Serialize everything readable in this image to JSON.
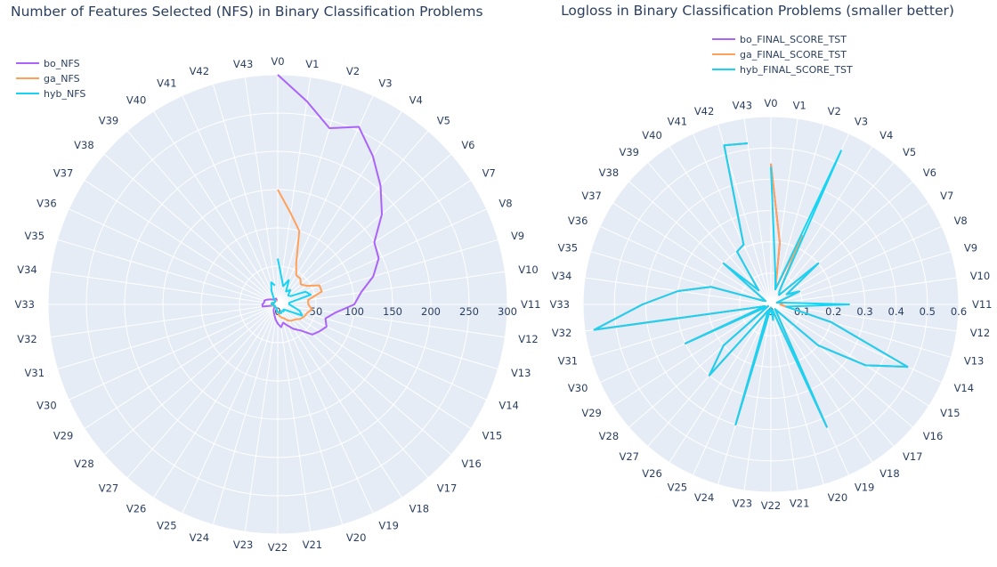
{
  "chart_data": [
    {
      "type": "polar-line",
      "title": "Number of Features Selected (NFS) in Binary Classification Problems",
      "theta_labels": [
        "V0",
        "V1",
        "V2",
        "V3",
        "V4",
        "V5",
        "V6",
        "V7",
        "V8",
        "V9",
        "V10",
        "V11",
        "V12",
        "V13",
        "V14",
        "V15",
        "V16",
        "V17",
        "V18",
        "V19",
        "V20",
        "V21",
        "V22",
        "V23",
        "V24",
        "V25",
        "V26",
        "V27",
        "V28",
        "V29",
        "V30",
        "V31",
        "V32",
        "V33",
        "V34",
        "V35",
        "V36",
        "V37",
        "V38",
        "V39",
        "V40",
        "V41",
        "V42",
        "V43"
      ],
      "radial_range": [
        0,
        300
      ],
      "radial_ticks": [
        0,
        50,
        100,
        150,
        200,
        250,
        300
      ],
      "legend_position": "top-left",
      "series": [
        {
          "name": "bo_NFS",
          "color": "#ab63fa",
          "values": [
            300,
            268,
            240,
            255,
            230,
            205,
            180,
            150,
            145,
            130,
            110,
            100,
            76,
            65,
            70,
            65,
            60,
            45,
            38,
            30,
            25,
            30,
            25,
            20,
            15,
            12,
            10,
            8,
            6,
            5,
            5,
            5,
            20,
            20,
            18,
            18,
            15,
            12,
            10,
            8,
            8,
            8,
            8,
            5
          ]
        },
        {
          "name": "ga_NFS",
          "color": "#FFA15A",
          "values": [
            150,
            120,
            100,
            58,
            45,
            45,
            40,
            45,
            60,
            60,
            40,
            40,
            45,
            40,
            38,
            35,
            30,
            28,
            25,
            20,
            18,
            15,
            10,
            8,
            6,
            5,
            5,
            4,
            4,
            5,
            5,
            5,
            8,
            8,
            8,
            5,
            5,
            5,
            5,
            5,
            5,
            5,
            5,
            5
          ]
        },
        {
          "name": "hyb_NFS",
          "color": "#19d3f3",
          "values": [
            60,
            35,
            25,
            35,
            20,
            25,
            18,
            20,
            40,
            45,
            15,
            15,
            20,
            30,
            35,
            15,
            10,
            12,
            10,
            12,
            12,
            10,
            10,
            8,
            5,
            5,
            5,
            5,
            4,
            4,
            5,
            5,
            5,
            8,
            8,
            8,
            5,
            5,
            5,
            5,
            10,
            20,
            30,
            25
          ]
        }
      ]
    },
    {
      "type": "polar-line",
      "title": "Logloss in Binary Classification Problems (smaller better)",
      "theta_labels": [
        "V0",
        "V1",
        "V2",
        "V3",
        "V4",
        "V5",
        "V6",
        "V7",
        "V8",
        "V9",
        "V10",
        "V11",
        "V12",
        "V13",
        "V14",
        "V15",
        "V16",
        "V17",
        "V18",
        "V19",
        "V20",
        "V21",
        "V22",
        "V23",
        "V24",
        "V25",
        "V26",
        "V27",
        "V28",
        "V29",
        "V30",
        "V31",
        "V32",
        "V33",
        "V34",
        "V35",
        "V36",
        "V37",
        "V38",
        "V39",
        "V40",
        "V41",
        "V42",
        "V43"
      ],
      "radial_range": [
        0,
        0.6
      ],
      "radial_ticks": [
        0,
        0.1,
        0.2,
        0.3,
        0.4,
        0.5,
        0.6
      ],
      "legend_position": "top-center",
      "series": [
        {
          "name": "bo_FINAL_SCORE_TST",
          "color": "#ab63fa",
          "values": [
            0.45,
            0.2,
            0.05,
            0.24,
            0.05,
            0.04,
            0.2,
            0.06,
            0.1,
            0.02,
            0.04,
            0.03,
            0.05,
            0.2,
            0.48,
            0.36,
            0.2,
            0.02,
            0.04,
            0.43,
            0.02,
            0.05,
            0.01,
            0.02,
            0.4,
            0.02,
            0.04,
            0.3,
            0.2,
            0.01,
            0.3,
            0.02,
            0.57,
            0.41,
            0.3,
            0.2,
            0.03,
            0.02,
            0.2,
            0.06,
            0.2,
            0.21,
            0.53,
            0.52
          ]
        },
        {
          "name": "ga_FINAL_SCORE_TST",
          "color": "#FFA15A",
          "values": [
            0.45,
            0.2,
            0.05,
            0.24,
            0.05,
            0.04,
            0.2,
            0.06,
            0.1,
            0.02,
            0.04,
            0.03,
            0.05,
            0.2,
            0.48,
            0.36,
            0.2,
            0.02,
            0.04,
            0.43,
            0.02,
            0.05,
            0.01,
            0.02,
            0.4,
            0.02,
            0.04,
            0.3,
            0.2,
            0.01,
            0.3,
            0.02,
            0.57,
            0.41,
            0.3,
            0.2,
            0.03,
            0.02,
            0.2,
            0.06,
            0.2,
            0.21,
            0.53,
            0.52
          ]
        },
        {
          "name": "hyb_FINAL_SCORE_TST",
          "color": "#19d3f3",
          "values": [
            0.44,
            0.1,
            0.05,
            0.54,
            0.05,
            0.04,
            0.2,
            0.06,
            0.1,
            0.02,
            0.04,
            0.25,
            0.05,
            0.2,
            0.48,
            0.36,
            0.2,
            0.02,
            0.04,
            0.43,
            0.02,
            0.05,
            0.01,
            0.02,
            0.4,
            0.02,
            0.04,
            0.3,
            0.2,
            0.01,
            0.3,
            0.02,
            0.57,
            0.41,
            0.3,
            0.2,
            0.03,
            0.02,
            0.2,
            0.06,
            0.2,
            0.21,
            0.53,
            0.52
          ]
        }
      ]
    }
  ],
  "background_color": "#e5ecf6",
  "grid_color": "#ffffff"
}
